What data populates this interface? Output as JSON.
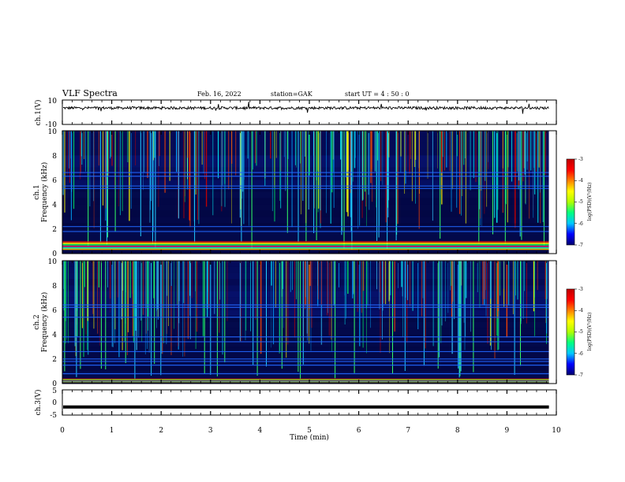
{
  "header": {
    "title": "VLF Spectra",
    "date": "Feb. 16, 2022",
    "station": "station=GAK",
    "start": "start  UT =   4 : 50 : 0"
  },
  "colors": {
    "spectrogram_background": "#000035",
    "colorbar_stops": [
      "#000070",
      "#0000ff",
      "#00c8ff",
      "#00ff80",
      "#b0ff00",
      "#ffff00",
      "#ff8000",
      "#ff0000",
      "#c00000"
    ]
  },
  "chart_data": [
    {
      "type": "line",
      "panel": "ch1-waveform",
      "ylabel": "ch.1(V)",
      "ylim": [
        -10,
        10
      ],
      "yticks": [
        "10",
        "-10"
      ],
      "x_range_min": [
        0,
        9.85
      ],
      "baseline_v": 3.5
    },
    {
      "type": "heatmap",
      "panel": "ch1-spectrogram",
      "ylabel_channel": "ch.1",
      "ylabel": "Frequency (kHz)",
      "ylim": [
        0,
        10
      ],
      "yticks": [
        "0",
        "2",
        "4",
        "6",
        "8",
        "10"
      ],
      "x_range_min": [
        0,
        9.85
      ],
      "features": {
        "strong_band_khz": [
          0.3,
          1.0
        ],
        "horizontal_lines_khz": [
          1.8,
          2.2,
          5.3,
          5.5,
          6.3,
          6.6
        ],
        "high_intensity_region_khz": [
          6.5,
          10
        ]
      },
      "colorbar": {
        "label": "log(PSD)(V²/Hz)",
        "range": [
          -7,
          -3
        ],
        "ticks": [
          "-3",
          "-4",
          "-5",
          "-6",
          "-7"
        ]
      }
    },
    {
      "type": "heatmap",
      "panel": "ch2-spectrogram",
      "ylabel_channel": "ch.2",
      "ylabel": "Frequency (kHz)",
      "ylim": [
        0,
        10
      ],
      "yticks": [
        "0",
        "2",
        "4",
        "6",
        "8",
        "10"
      ],
      "x_range_min": [
        0,
        9.85
      ],
      "features": {
        "strong_band_khz": [
          0.1,
          0.4
        ],
        "horizontal_lines_khz": [
          0.8,
          1.5,
          1.8,
          2.0,
          2.6,
          3.4,
          3.8,
          5.4,
          6.2,
          6.4
        ],
        "high_intensity_region_khz": [
          6.5,
          10
        ]
      },
      "colorbar": {
        "label": "log(PSD)(V²/Hz)",
        "range": [
          -7,
          -3
        ],
        "ticks": [
          "-3",
          "-4",
          "-5",
          "-6",
          "-7"
        ]
      }
    },
    {
      "type": "line",
      "panel": "ch3-waveform",
      "ylabel": "ch.3(V)",
      "ylim": [
        -5,
        5
      ],
      "yticks": [
        "5",
        "0",
        "-5"
      ],
      "x_range_min": [
        0,
        9.85
      ],
      "constant_v": -1.8
    }
  ],
  "xaxis": {
    "label": "Time (min)",
    "range": [
      0,
      10
    ],
    "ticks": [
      "0",
      "1",
      "2",
      "3",
      "4",
      "5",
      "6",
      "7",
      "8",
      "9",
      "10"
    ]
  }
}
